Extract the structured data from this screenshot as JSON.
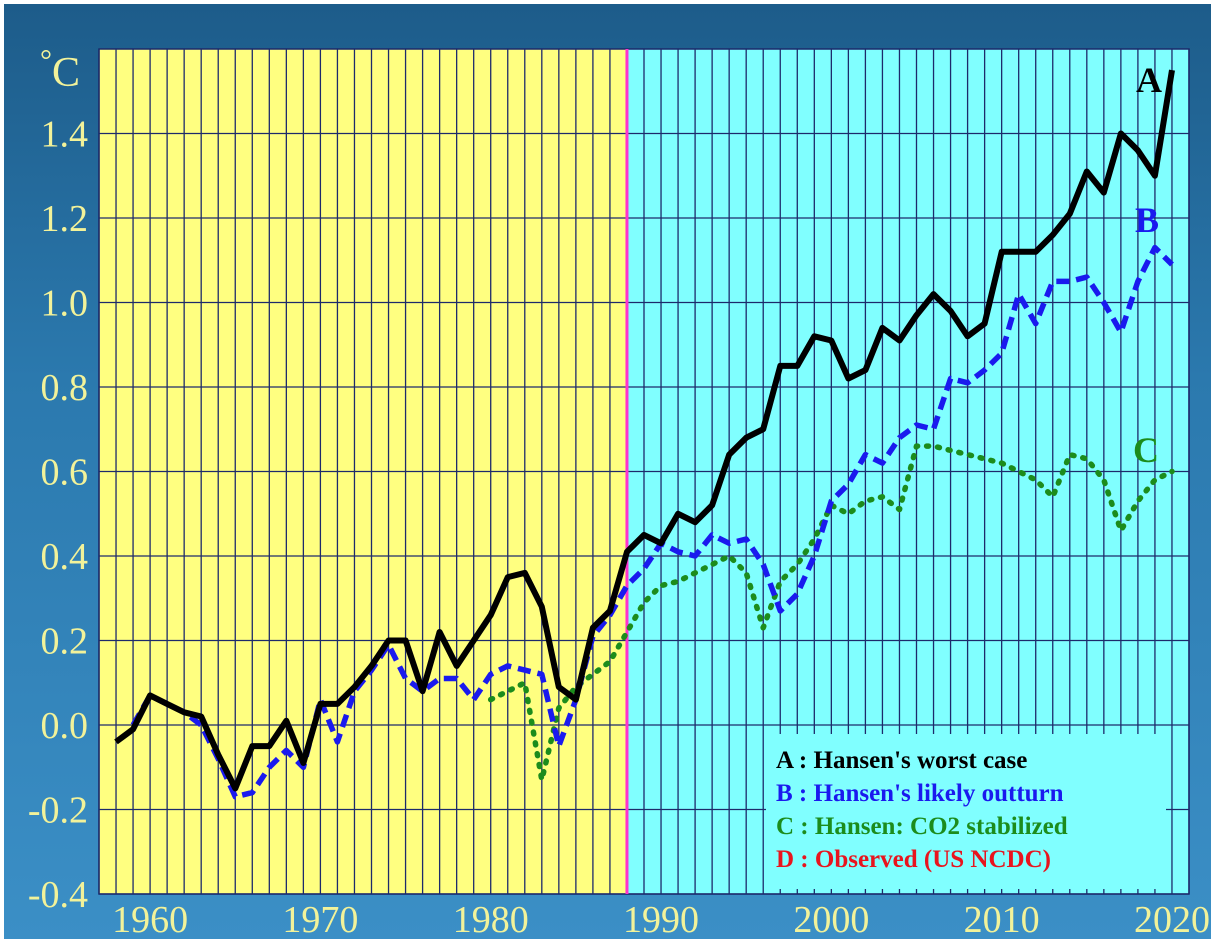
{
  "chart_data": {
    "type": "line",
    "ylabel": "°C",
    "xlim": [
      1957,
      2021
    ],
    "ylim": [
      -0.4,
      1.6
    ],
    "xticks": [
      1960,
      1970,
      1980,
      1990,
      2000,
      2010,
      2020
    ],
    "yticks": [
      -0.4,
      -0.2,
      0.0,
      0.2,
      0.4,
      0.6,
      0.8,
      1.0,
      1.2,
      1.4
    ],
    "ytick_labels": [
      "-0.4",
      "-0.2",
      "0.0",
      "0.2",
      "0.4",
      "0.6",
      "0.8",
      "1.0",
      "1.2",
      "1.4"
    ],
    "grid": true,
    "regions": [
      {
        "from": 1957,
        "to": 1988,
        "color": "#ffff80"
      },
      {
        "from": 1988,
        "to": 2021,
        "color": "#80ffff"
      }
    ],
    "divider": {
      "x": 1988,
      "color": "#ff33cc"
    },
    "legend_position": "bottom-right",
    "series": [
      {
        "label": "A",
        "name": "Hansen's worst case",
        "color": "#000000",
        "style": "solid",
        "x": [
          1958,
          1959,
          1960,
          1961,
          1962,
          1963,
          1964,
          1965,
          1966,
          1967,
          1968,
          1969,
          1970,
          1971,
          1972,
          1973,
          1974,
          1975,
          1976,
          1977,
          1978,
          1979,
          1980,
          1981,
          1982,
          1983,
          1984,
          1985,
          1986,
          1987,
          1988,
          1989,
          1990,
          1991,
          1992,
          1993,
          1994,
          1995,
          1996,
          1997,
          1998,
          1999,
          2000,
          2001,
          2002,
          2003,
          2004,
          2005,
          2006,
          2007,
          2008,
          2009,
          2010,
          2011,
          2012,
          2013,
          2014,
          2015,
          2016,
          2017,
          2018,
          2019,
          2020
        ],
        "values": [
          -0.04,
          -0.01,
          0.07,
          0.05,
          0.03,
          0.02,
          -0.07,
          -0.15,
          -0.05,
          -0.05,
          0.01,
          -0.09,
          0.05,
          0.05,
          0.09,
          0.14,
          0.2,
          0.2,
          0.08,
          0.22,
          0.14,
          0.2,
          0.26,
          0.35,
          0.36,
          0.28,
          0.09,
          0.06,
          0.23,
          0.27,
          0.41,
          0.45,
          0.43,
          0.5,
          0.48,
          0.52,
          0.64,
          0.68,
          0.7,
          0.85,
          0.85,
          0.92,
          0.91,
          0.82,
          0.84,
          0.94,
          0.91,
          0.97,
          1.02,
          0.98,
          0.92,
          0.95,
          1.12,
          1.12,
          1.12,
          1.16,
          1.21,
          1.31,
          1.26,
          1.4,
          1.36,
          1.3,
          1.55
        ]
      },
      {
        "label": "B",
        "name": "Hansen's likely outturn",
        "color": "#1a1aee",
        "style": "dashed",
        "x": [
          1959,
          1960,
          1961,
          1962,
          1963,
          1964,
          1965,
          1966,
          1967,
          1968,
          1969,
          1970,
          1971,
          1972,
          1973,
          1974,
          1975,
          1976,
          1977,
          1978,
          1979,
          1980,
          1981,
          1982,
          1983,
          1984,
          1985,
          1986,
          1987,
          1988,
          1989,
          1990,
          1991,
          1992,
          1993,
          1994,
          1995,
          1996,
          1997,
          1998,
          1999,
          2000,
          2001,
          2002,
          2003,
          2004,
          2005,
          2006,
          2007,
          2008,
          2009,
          2010,
          2011,
          2012,
          2013,
          2014,
          2015,
          2016,
          2017,
          2018,
          2019,
          2020
        ],
        "values": [
          0.0,
          0.07,
          0.05,
          0.03,
          0.0,
          -0.08,
          -0.17,
          -0.16,
          -0.1,
          -0.06,
          -0.1,
          0.06,
          -0.04,
          0.08,
          0.13,
          0.19,
          0.11,
          0.08,
          0.11,
          0.11,
          0.06,
          0.12,
          0.14,
          0.13,
          0.12,
          -0.05,
          0.06,
          0.21,
          0.26,
          0.33,
          0.37,
          0.43,
          0.41,
          0.4,
          0.45,
          0.43,
          0.44,
          0.38,
          0.27,
          0.31,
          0.4,
          0.53,
          0.57,
          0.64,
          0.62,
          0.68,
          0.71,
          0.7,
          0.82,
          0.81,
          0.84,
          0.88,
          1.02,
          0.95,
          1.05,
          1.05,
          1.06,
          1.0,
          0.93,
          1.05,
          1.13,
          1.09
        ]
      },
      {
        "label": "C",
        "name": "Hansen: CO2 stabilized",
        "color": "#1c8c1c",
        "style": "dotted",
        "x": [
          1980,
          1981,
          1982,
          1983,
          1984,
          1985,
          1986,
          1987,
          1988,
          1989,
          1990,
          1991,
          1992,
          1993,
          1994,
          1995,
          1996,
          1997,
          1998,
          1999,
          2000,
          2001,
          2002,
          2003,
          2004,
          2005,
          2006,
          2007,
          2008,
          2009,
          2010,
          2011,
          2012,
          2013,
          2014,
          2015,
          2016,
          2017,
          2018,
          2019,
          2020
        ],
        "values": [
          0.06,
          0.08,
          0.1,
          -0.13,
          0.04,
          0.09,
          0.12,
          0.15,
          0.22,
          0.29,
          0.33,
          0.34,
          0.36,
          0.38,
          0.4,
          0.36,
          0.23,
          0.34,
          0.38,
          0.44,
          0.52,
          0.5,
          0.53,
          0.54,
          0.51,
          0.66,
          0.66,
          0.65,
          0.64,
          0.63,
          0.62,
          0.6,
          0.58,
          0.54,
          0.64,
          0.63,
          0.58,
          0.46,
          0.53,
          0.58,
          0.6
        ]
      }
    ],
    "legend": [
      {
        "key": "A",
        "text": "Hansen's worst case",
        "color": "#000000"
      },
      {
        "key": "B",
        "text": "Hansen's likely outturn",
        "color": "#1a1aee"
      },
      {
        "key": "C",
        "text": "Hansen: CO2 stabilized",
        "color": "#1c8c1c"
      },
      {
        "key": "D",
        "text": "Observed (US NCDC)",
        "color": "#e8141e"
      }
    ]
  }
}
